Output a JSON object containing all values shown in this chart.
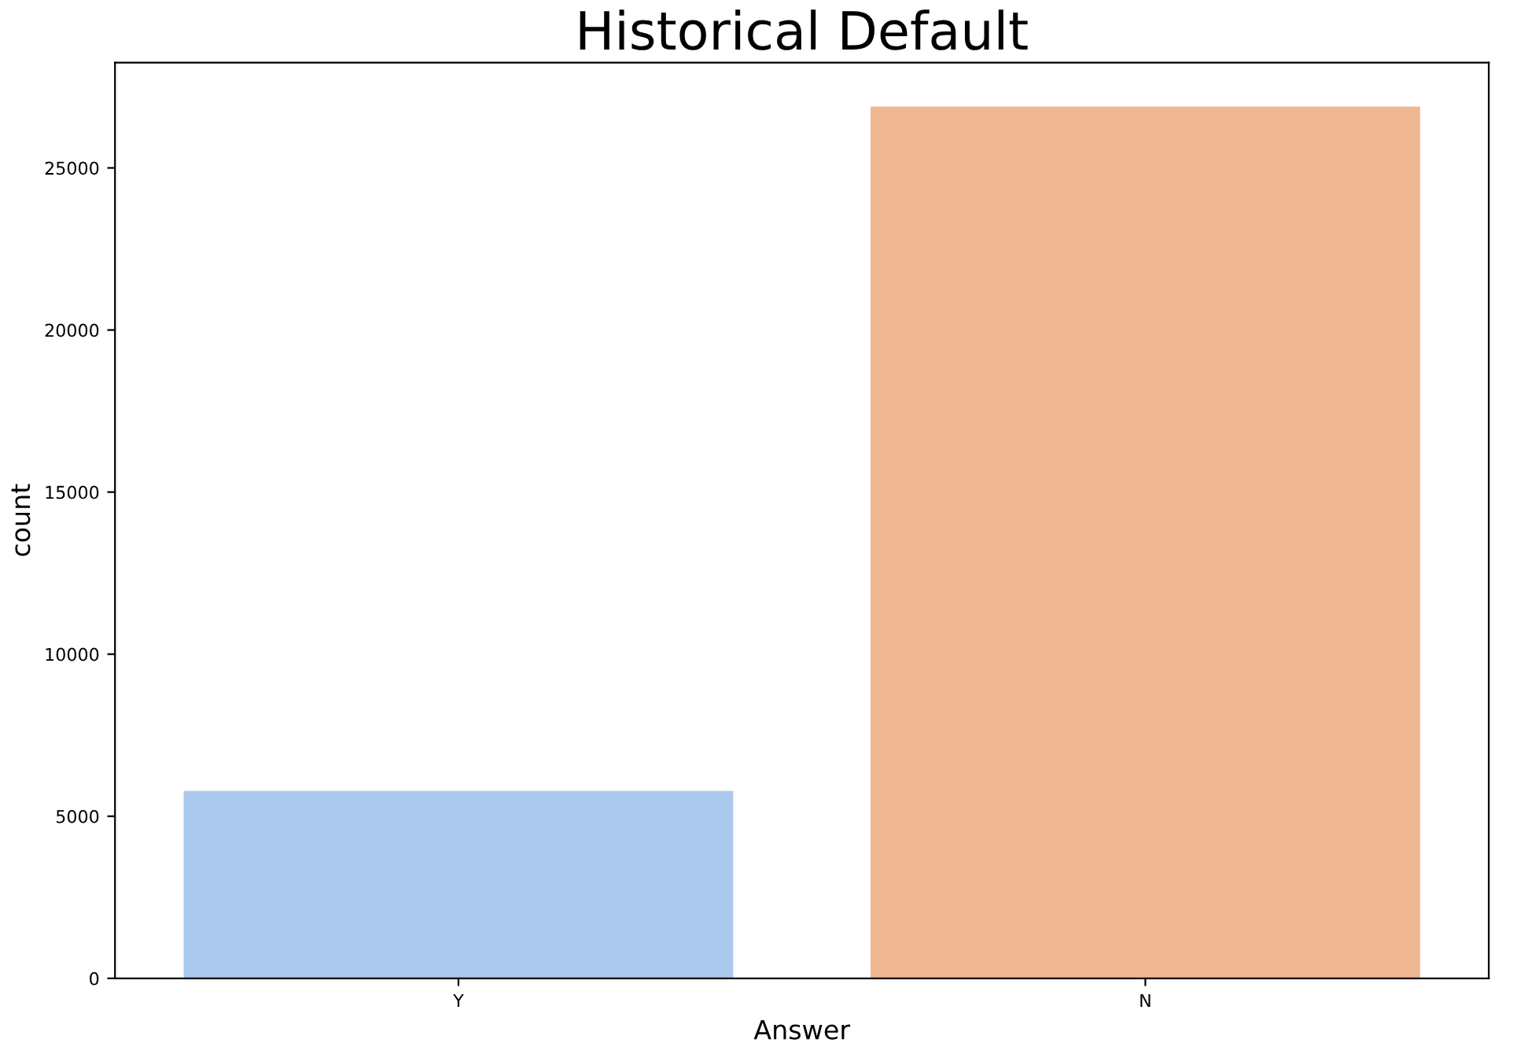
{
  "chart_data": {
    "type": "bar",
    "title": "Historical Default",
    "xlabel": "Answer",
    "ylabel": "count",
    "categories": [
      "Y",
      "N"
    ],
    "values": [
      5780,
      26890
    ],
    "colors": [
      "#abc9ed",
      "#f0b793"
    ],
    "ylim": [
      0,
      28250
    ],
    "yticks": [
      0,
      5000,
      10000,
      15000,
      20000,
      25000
    ],
    "grid": false,
    "legend": false
  }
}
